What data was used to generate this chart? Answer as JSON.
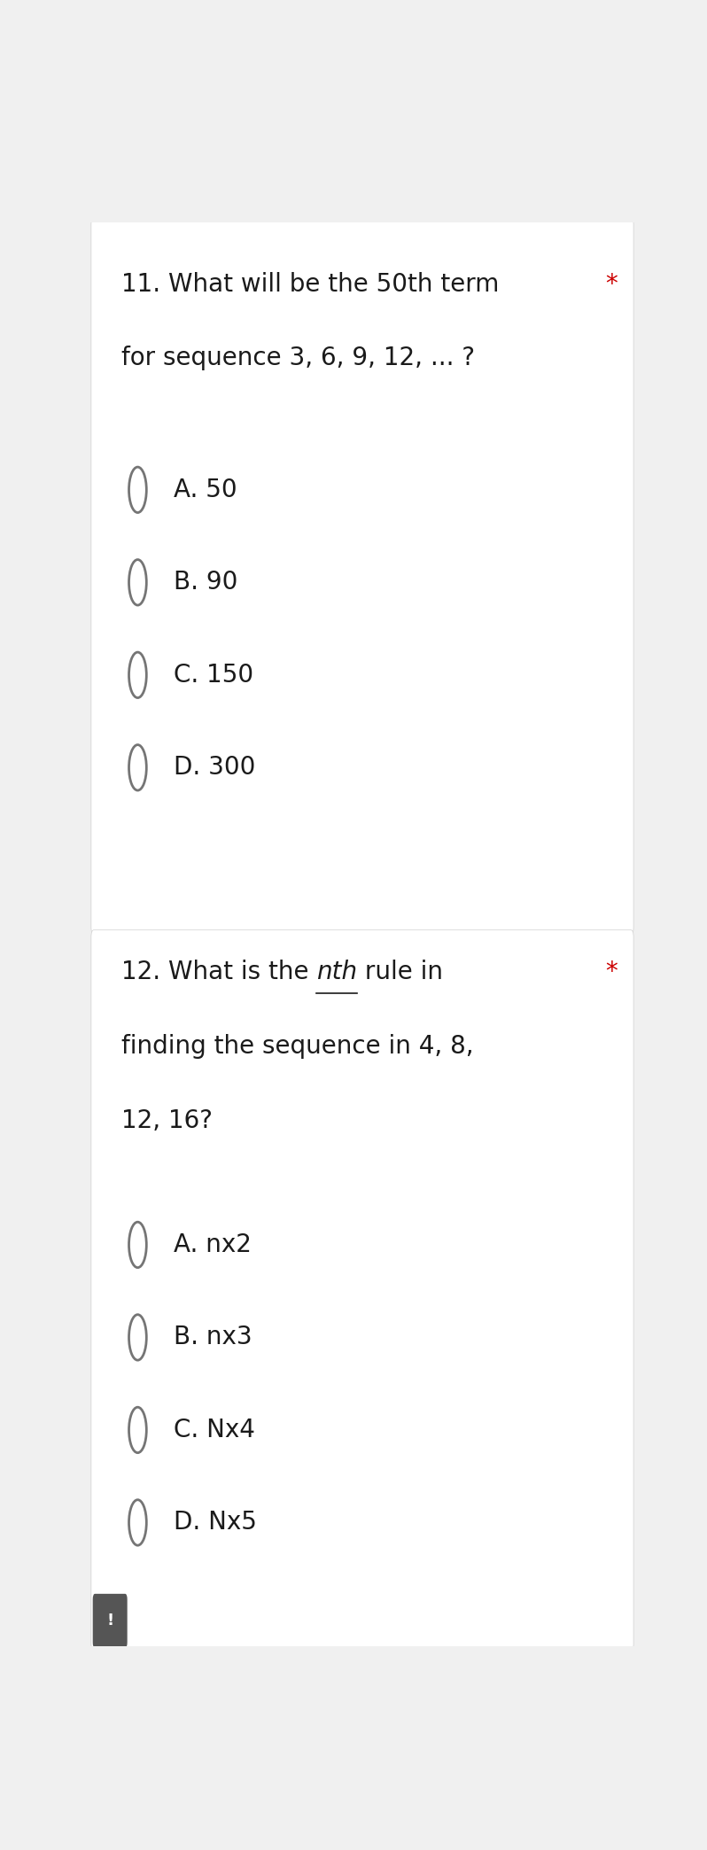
{
  "bg_color": "#f0f0f0",
  "card_bg": "#ffffff",
  "separator_color": "#d0d0d0",
  "text_color": "#1a1a1a",
  "circle_color": "#757575",
  "asterisk_color": "#cc0000",
  "q1_number": "11.",
  "q1_line1": " What will be the 50th term",
  "q1_line2": "for sequence 3, 6, 9, 12, ... ?",
  "q1_asterisk": "*",
  "q1_options": [
    "A. 50",
    "B. 90",
    "C. 150",
    "D. 300"
  ],
  "q2_number": "12.",
  "q2_line1_before": " What is the ",
  "q2_line1_nth": "nth",
  "q2_line1_after": " rule in",
  "q2_line2": "finding the sequence in 4, 8,",
  "q2_line3": "12, 16?",
  "q2_asterisk": "*",
  "q2_options": [
    "A. nx2",
    "B. nx3",
    "C. Nx4",
    "D. Nx5"
  ],
  "font_size_question": 20,
  "font_size_option": 20,
  "exclamation_text": "!",
  "exclamation_bg": "#555555",
  "exclamation_color": "#ffffff"
}
